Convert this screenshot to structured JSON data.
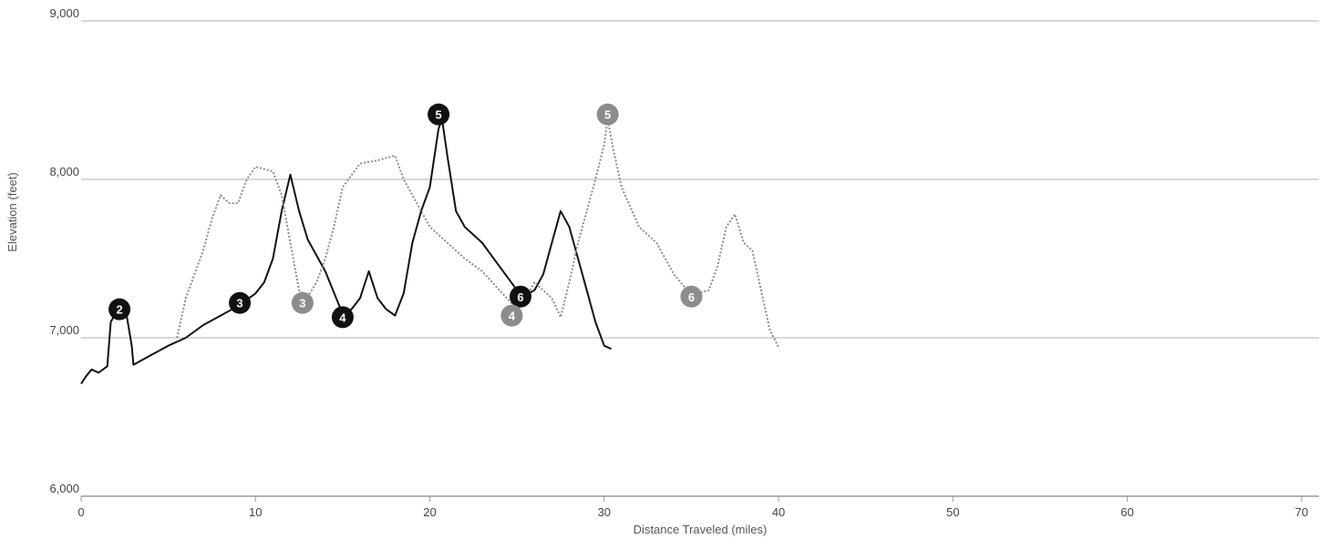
{
  "chart_data": {
    "type": "line",
    "title": "",
    "xlabel": "Distance Traveled (miles)",
    "ylabel": "Elevation (feet)",
    "xlim": [
      0,
      71
    ],
    "ylim": [
      6000,
      9000
    ],
    "x_ticks": [
      0,
      10,
      20,
      30,
      40,
      50,
      60,
      70
    ],
    "x_tick_labels": [
      "0",
      "10",
      "20",
      "30",
      "40",
      "50",
      "60",
      "70"
    ],
    "y_ticks": [
      6000,
      7000,
      8000,
      9000
    ],
    "y_tick_labels": [
      "6,000",
      "7,000",
      "8,000",
      "9,000"
    ],
    "grid": "horizontal",
    "legend": "none",
    "series": [
      {
        "style": "solid",
        "color": "#111111",
        "points": [
          [
            0,
            6710
          ],
          [
            0.3,
            6760
          ],
          [
            0.6,
            6800
          ],
          [
            1.0,
            6780
          ],
          [
            1.5,
            6820
          ],
          [
            1.7,
            7100
          ],
          [
            2.0,
            7160
          ],
          [
            2.3,
            7180
          ],
          [
            2.6,
            7150
          ],
          [
            2.9,
            6950
          ],
          [
            3.0,
            6830
          ],
          [
            4.0,
            6890
          ],
          [
            5.0,
            6950
          ],
          [
            6.0,
            7000
          ],
          [
            7.0,
            7080
          ],
          [
            8.0,
            7140
          ],
          [
            9.0,
            7200
          ],
          [
            10.0,
            7280
          ],
          [
            10.5,
            7350
          ],
          [
            11.0,
            7500
          ],
          [
            11.5,
            7800
          ],
          [
            12.0,
            8030
          ],
          [
            12.5,
            7800
          ],
          [
            13.0,
            7620
          ],
          [
            14.0,
            7420
          ],
          [
            15.0,
            7150
          ],
          [
            15.5,
            7180
          ],
          [
            16.0,
            7250
          ],
          [
            16.5,
            7420
          ],
          [
            17.0,
            7250
          ],
          [
            17.5,
            7180
          ],
          [
            18.0,
            7140
          ],
          [
            18.5,
            7280
          ],
          [
            19.0,
            7600
          ],
          [
            19.5,
            7800
          ],
          [
            20.0,
            7950
          ],
          [
            20.5,
            8320
          ],
          [
            20.7,
            8380
          ],
          [
            21.0,
            8150
          ],
          [
            21.5,
            7800
          ],
          [
            22.0,
            7700
          ],
          [
            23.0,
            7600
          ],
          [
            24.0,
            7450
          ],
          [
            25.0,
            7300
          ],
          [
            25.5,
            7270
          ],
          [
            26.0,
            7300
          ],
          [
            26.5,
            7400
          ],
          [
            27.0,
            7600
          ],
          [
            27.5,
            7800
          ],
          [
            28.0,
            7700
          ],
          [
            28.5,
            7500
          ],
          [
            29.0,
            7300
          ],
          [
            29.5,
            7100
          ],
          [
            30.0,
            6950
          ],
          [
            30.4,
            6930
          ]
        ],
        "markers": [
          {
            "label": "2",
            "x": 2.2,
            "y": 7180
          },
          {
            "label": "3",
            "x": 9.1,
            "y": 7220
          },
          {
            "label": "4",
            "x": 15.0,
            "y": 7130
          },
          {
            "label": "5",
            "x": 20.5,
            "y": 8410
          },
          {
            "label": "6",
            "x": 25.2,
            "y": 7260
          }
        ]
      },
      {
        "style": "dotted",
        "color": "#8c8c8c",
        "points": [
          [
            5.5,
            7000
          ],
          [
            6.0,
            7250
          ],
          [
            7.0,
            7550
          ],
          [
            7.5,
            7750
          ],
          [
            8.0,
            7900
          ],
          [
            8.5,
            7850
          ],
          [
            9.0,
            7850
          ],
          [
            9.5,
            8000
          ],
          [
            10.0,
            8080
          ],
          [
            11.0,
            8050
          ],
          [
            11.5,
            7900
          ],
          [
            12.0,
            7600
          ],
          [
            12.5,
            7300
          ],
          [
            13.0,
            7260
          ],
          [
            13.5,
            7350
          ],
          [
            14.0,
            7500
          ],
          [
            14.5,
            7700
          ],
          [
            15.0,
            7950
          ],
          [
            16.0,
            8100
          ],
          [
            17.0,
            8120
          ],
          [
            18.0,
            8150
          ],
          [
            18.5,
            8000
          ],
          [
            19.0,
            7900
          ],
          [
            19.5,
            7800
          ],
          [
            20.0,
            7700
          ],
          [
            21.0,
            7600
          ],
          [
            22.0,
            7500
          ],
          [
            23.0,
            7420
          ],
          [
            24.0,
            7300
          ],
          [
            25.0,
            7180
          ],
          [
            25.5,
            7250
          ],
          [
            26.0,
            7350
          ],
          [
            27.0,
            7250
          ],
          [
            27.5,
            7130
          ],
          [
            28.0,
            7350
          ],
          [
            28.5,
            7600
          ],
          [
            29.0,
            7800
          ],
          [
            29.5,
            8000
          ],
          [
            30.0,
            8220
          ],
          [
            30.2,
            8380
          ],
          [
            30.5,
            8200
          ],
          [
            31.0,
            7950
          ],
          [
            32.0,
            7700
          ],
          [
            33.0,
            7600
          ],
          [
            34.0,
            7400
          ],
          [
            35.0,
            7270
          ],
          [
            36.0,
            7300
          ],
          [
            36.5,
            7450
          ],
          [
            37.0,
            7700
          ],
          [
            37.5,
            7780
          ],
          [
            38.0,
            7600
          ],
          [
            38.5,
            7550
          ],
          [
            39.0,
            7300
          ],
          [
            39.5,
            7050
          ],
          [
            40.0,
            6940
          ]
        ],
        "markers": [
          {
            "label": "3",
            "x": 12.7,
            "y": 7220
          },
          {
            "label": "4",
            "x": 24.7,
            "y": 7140
          },
          {
            "label": "5",
            "x": 30.2,
            "y": 8410
          },
          {
            "label": "6",
            "x": 35.0,
            "y": 7260
          }
        ]
      }
    ]
  }
}
